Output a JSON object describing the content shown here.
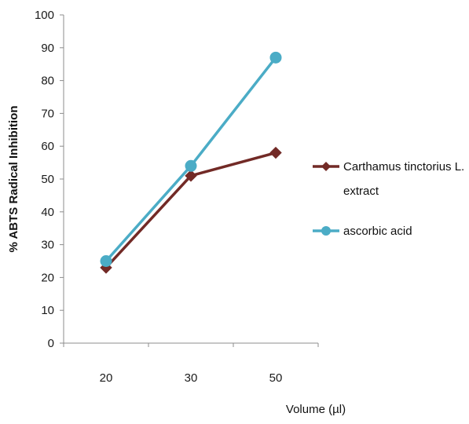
{
  "chart_data": {
    "type": "line",
    "title": "",
    "xlabel": "Volume (µl)",
    "ylabel": "% ABTS Radical Inhibition",
    "categories": [
      "20",
      "30",
      "50"
    ],
    "ylim": [
      0,
      100
    ],
    "yticks": [
      0,
      10,
      20,
      30,
      40,
      50,
      60,
      70,
      80,
      90,
      100
    ],
    "grid": false,
    "legend_position": "right",
    "series": [
      {
        "name": "Carthamus tinctorius L. extract",
        "legend_lines": [
          "Carthamus tinctorius L.",
          "extract"
        ],
        "values": [
          23,
          51,
          58
        ],
        "color": "#722a26",
        "marker": "diamond"
      },
      {
        "name": "ascorbic acid",
        "legend_lines": [
          "ascorbic acid"
        ],
        "values": [
          25,
          54,
          87
        ],
        "color": "#4bacc6",
        "marker": "circle"
      }
    ]
  }
}
